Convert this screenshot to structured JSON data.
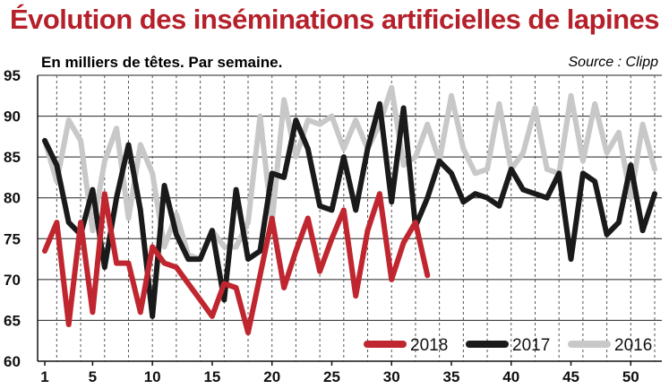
{
  "chart_data": {
    "type": "line",
    "title": "Évolution des inséminations artificielles de lapines",
    "subtitle": "En milliers de têtes. Par semaine.",
    "source": "Source : Clipp",
    "xlabel": "",
    "ylabel": "",
    "xlim": [
      1,
      52
    ],
    "ylim": [
      60,
      95
    ],
    "y_ticks": [
      60,
      65,
      70,
      75,
      80,
      85,
      90,
      95
    ],
    "x_ticks": [
      1,
      5,
      10,
      15,
      20,
      25,
      30,
      35,
      40,
      45,
      50
    ],
    "grid": true,
    "legend_position": "bottom-right",
    "series": [
      {
        "name": "2016",
        "color": "#c8c8c8",
        "x": [
          1,
          2,
          3,
          4,
          5,
          6,
          7,
          8,
          9,
          10,
          11,
          12,
          13,
          14,
          15,
          16,
          17,
          18,
          19,
          20,
          21,
          22,
          23,
          24,
          25,
          26,
          27,
          28,
          29,
          30,
          31,
          32,
          33,
          34,
          35,
          36,
          37,
          38,
          39,
          40,
          41,
          42,
          43,
          44,
          45,
          46,
          47,
          48,
          49,
          50,
          51,
          52
        ],
        "values": [
          87,
          82,
          89.5,
          87,
          76,
          84.5,
          88.5,
          77.5,
          86.5,
          83,
          74,
          78,
          73,
          72.5,
          76,
          74,
          74,
          77,
          90,
          77,
          92,
          85,
          89.5,
          89,
          90,
          86,
          89.5,
          86,
          89,
          93.5,
          84,
          85,
          89,
          84.5,
          92.5,
          86,
          83,
          83.5,
          91.5,
          83.5,
          85.5,
          91,
          83.5,
          83,
          92.5,
          84.5,
          91.5,
          85.5,
          88,
          80,
          89,
          83.5
        ]
      },
      {
        "name": "2017",
        "color": "#1a1a1a",
        "x": [
          1,
          2,
          3,
          4,
          5,
          6,
          7,
          8,
          9,
          10,
          11,
          12,
          13,
          14,
          15,
          16,
          17,
          18,
          19,
          20,
          21,
          22,
          23,
          24,
          25,
          26,
          27,
          28,
          29,
          30,
          31,
          32,
          33,
          34,
          35,
          36,
          37,
          38,
          39,
          40,
          41,
          42,
          43,
          44,
          45,
          46,
          47,
          48,
          49,
          50,
          51,
          52
        ],
        "values": [
          87,
          84,
          77,
          75.5,
          81,
          71.5,
          80,
          86.5,
          78.5,
          65.5,
          81.5,
          75.5,
          72.5,
          72.5,
          76,
          67.5,
          81,
          72.5,
          73.5,
          83,
          82.5,
          89.5,
          86,
          79,
          78.5,
          85,
          78.5,
          86,
          91.5,
          79.5,
          91,
          76.5,
          80,
          84.5,
          83,
          79.5,
          80.5,
          80,
          79,
          83.5,
          81,
          80.5,
          80,
          83,
          72.5,
          83,
          82,
          75.5,
          77,
          84,
          76,
          80.5
        ]
      },
      {
        "name": "2018",
        "color": "#c0262f",
        "x": [
          1,
          2,
          3,
          4,
          5,
          6,
          7,
          8,
          9,
          10,
          11,
          12,
          13,
          14,
          15,
          16,
          17,
          18,
          19,
          20,
          21,
          22,
          23,
          24,
          25,
          26,
          27,
          28,
          29,
          30,
          31,
          32,
          33
        ],
        "values": [
          73.5,
          77,
          64.5,
          77,
          66,
          80.5,
          72,
          72,
          66,
          74,
          72,
          71.5,
          69.5,
          67.5,
          65.5,
          69.5,
          69,
          63.5,
          70.5,
          77.5,
          69,
          73.5,
          77.5,
          71,
          75,
          78.5,
          68,
          76,
          80.5,
          70,
          74.5,
          77,
          70.5
        ]
      }
    ]
  }
}
